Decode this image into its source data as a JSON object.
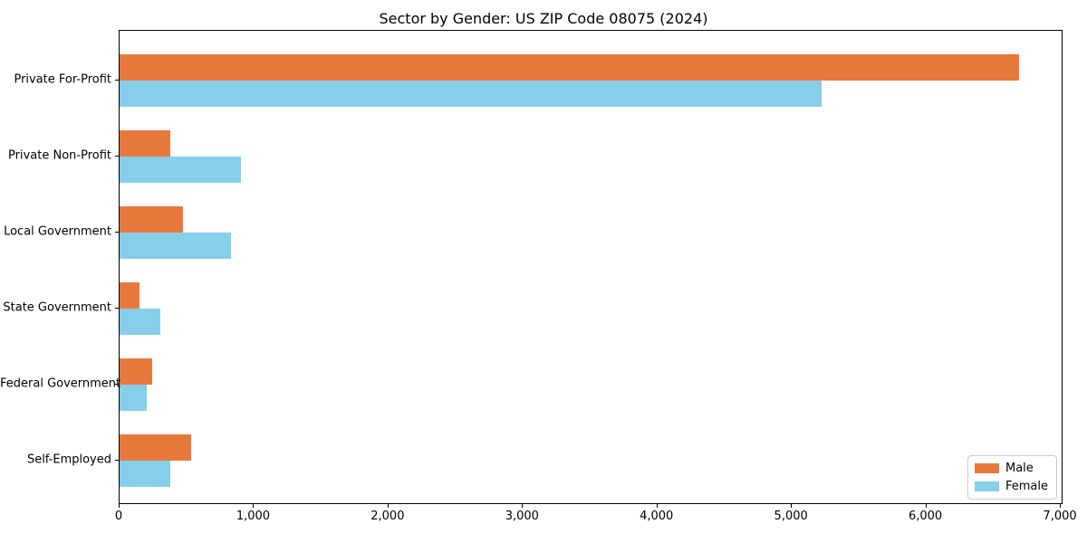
{
  "chart_data": {
    "type": "bar",
    "orientation": "horizontal",
    "title": "Sector by Gender: US ZIP Code 08075 (2024)",
    "categories": [
      "Private For-Profit",
      "Private Non-Profit",
      "Local Government",
      "State Government",
      "Federal Government",
      "Self-Employed"
    ],
    "series": [
      {
        "name": "Male",
        "color": "#e8793d",
        "values": [
          6690,
          375,
          470,
          150,
          240,
          530
        ]
      },
      {
        "name": "Female",
        "color": "#87ceeb",
        "values": [
          5220,
          900,
          830,
          300,
          200,
          375
        ]
      }
    ],
    "xlabel": "",
    "ylabel": "",
    "xlim": [
      0,
      7020
    ],
    "xticks": {
      "values": [
        0,
        1000,
        2000,
        3000,
        4000,
        5000,
        6000,
        7000
      ],
      "labels": [
        "0",
        "1,000",
        "2,000",
        "3,000",
        "4,000",
        "5,000",
        "6,000",
        "7,000"
      ]
    },
    "grid": false,
    "legend_position": "lower right"
  }
}
